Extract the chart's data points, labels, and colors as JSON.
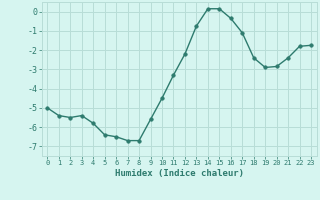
{
  "x": [
    0,
    1,
    2,
    3,
    4,
    5,
    6,
    7,
    8,
    9,
    10,
    11,
    12,
    13,
    14,
    15,
    16,
    17,
    18,
    19,
    20,
    21,
    22,
    23
  ],
  "y": [
    -5.0,
    -5.4,
    -5.5,
    -5.4,
    -5.8,
    -6.4,
    -6.5,
    -6.7,
    -6.7,
    -5.6,
    -4.5,
    -3.3,
    -2.2,
    -0.75,
    0.15,
    0.15,
    -0.35,
    -1.1,
    -2.4,
    -2.9,
    -2.85,
    -2.4,
    -1.8,
    -1.75
  ],
  "xlabel": "Humidex (Indice chaleur)",
  "line_color": "#2e7b6e",
  "marker_size": 2.5,
  "bg_color": "#d6f5f0",
  "grid_color": "#b8ddd7",
  "ylim": [
    -7.5,
    0.5
  ],
  "xlim": [
    -0.5,
    23.5
  ],
  "yticks": [
    0,
    -1,
    -2,
    -3,
    -4,
    -5,
    -6,
    -7
  ],
  "xtick_labels": [
    "0",
    "1",
    "2",
    "3",
    "4",
    "5",
    "6",
    "7",
    "8",
    "9",
    "10",
    "11",
    "12",
    "13",
    "14",
    "15",
    "16",
    "17",
    "18",
    "19",
    "20",
    "21",
    "22",
    "23"
  ],
  "figsize": [
    3.2,
    2.0
  ],
  "dpi": 100
}
